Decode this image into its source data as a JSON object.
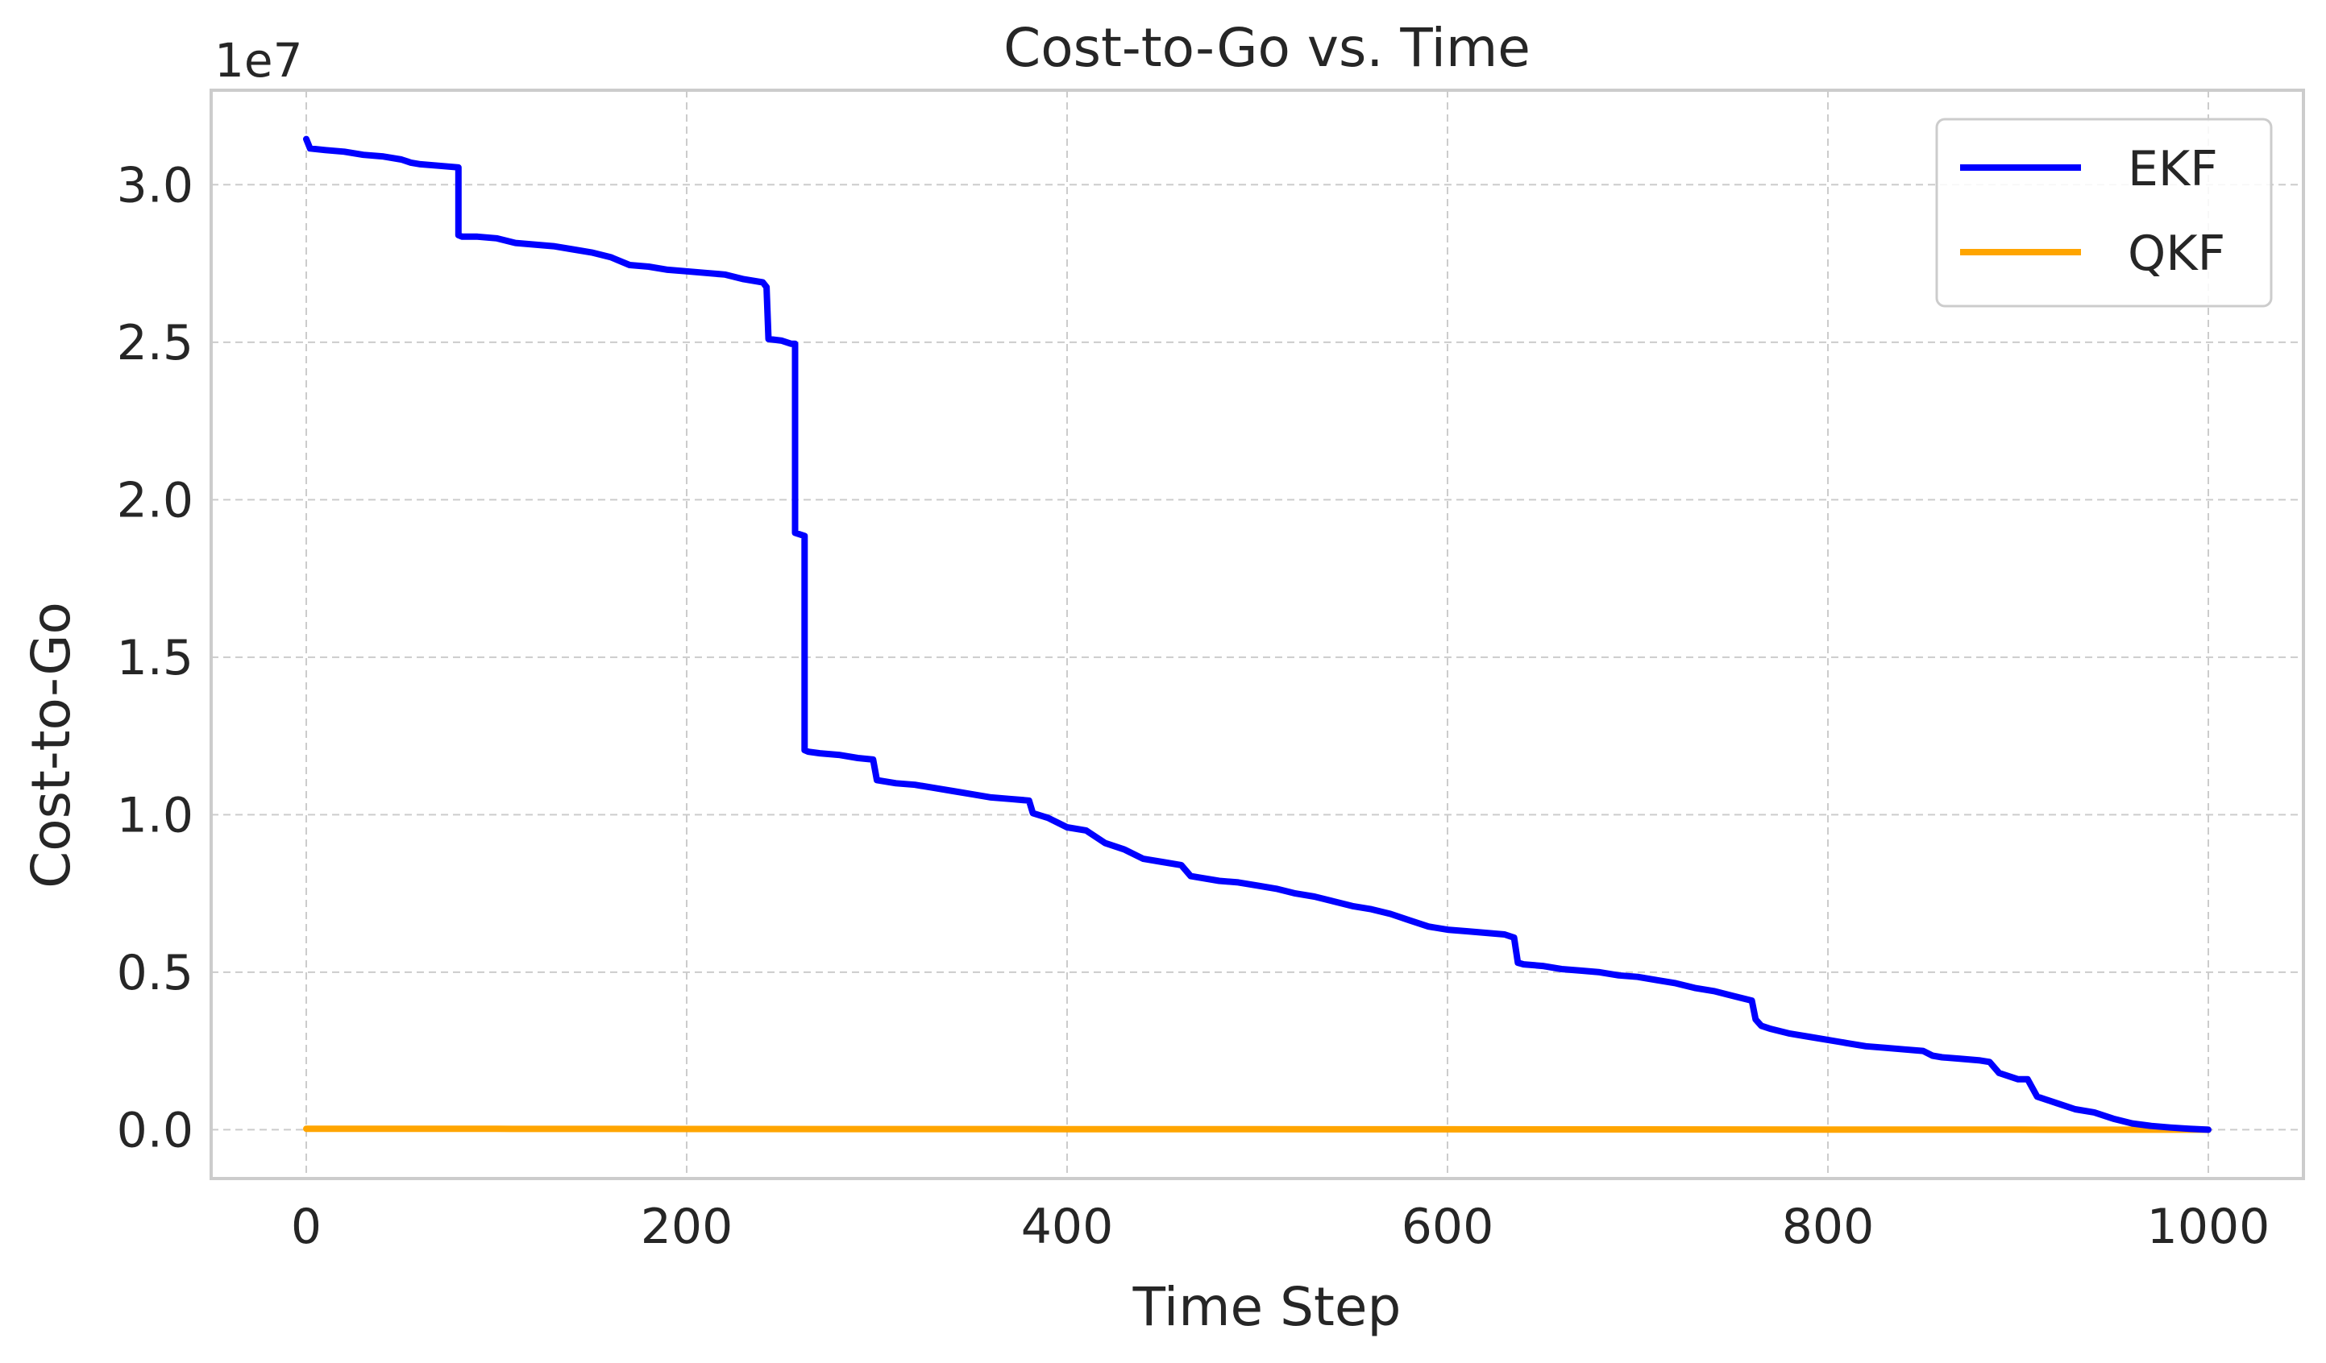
{
  "chart_data": {
    "type": "line",
    "title": "Cost-to-Go vs. Time",
    "xlabel": "Time Step",
    "ylabel": "Cost-to-Go",
    "y_scale_label": "1e7",
    "xlim": [
      -50,
      1050
    ],
    "ylim": [
      -1550000,
      33000000
    ],
    "x_ticks": [
      0,
      200,
      400,
      600,
      800,
      1000
    ],
    "x_tick_labels": [
      "0",
      "200",
      "400",
      "600",
      "800",
      "1000"
    ],
    "y_ticks": [
      0,
      5000000,
      10000000,
      15000000,
      20000000,
      25000000,
      30000000
    ],
    "y_tick_labels": [
      "0.0",
      "0.5",
      "1.0",
      "1.5",
      "2.0",
      "2.5",
      "3.0"
    ],
    "grid": true,
    "legend_position": "top-right",
    "series": [
      {
        "name": "EKF",
        "color": "#0000ff",
        "x": [
          0,
          2,
          10,
          20,
          30,
          40,
          50,
          55,
          60,
          70,
          80,
          80,
          82,
          90,
          100,
          110,
          120,
          130,
          140,
          150,
          160,
          170,
          180,
          190,
          200,
          210,
          220,
          230,
          240,
          242,
          243,
          250,
          255,
          257,
          257,
          262,
          262,
          264,
          270,
          280,
          290,
          298,
          300,
          310,
          320,
          330,
          340,
          350,
          360,
          370,
          380,
          382,
          390,
          400,
          410,
          420,
          430,
          440,
          450,
          460,
          465,
          470,
          480,
          490,
          500,
          510,
          520,
          530,
          540,
          550,
          560,
          570,
          580,
          590,
          600,
          610,
          620,
          630,
          635,
          637,
          640,
          650,
          660,
          670,
          680,
          690,
          700,
          710,
          720,
          730,
          740,
          750,
          760,
          762,
          765,
          770,
          780,
          790,
          800,
          810,
          820,
          830,
          840,
          850,
          855,
          860,
          870,
          880,
          885,
          890,
          900,
          905,
          910,
          920,
          930,
          940,
          950,
          960,
          970,
          980,
          990,
          1000
        ],
        "y": [
          31450000,
          31150000,
          31100000,
          31050000,
          30950000,
          30900000,
          30800000,
          30700000,
          30650000,
          30600000,
          30550000,
          28400000,
          28350000,
          28350000,
          28300000,
          28150000,
          28100000,
          28050000,
          27950000,
          27850000,
          27700000,
          27450000,
          27400000,
          27300000,
          27250000,
          27200000,
          27150000,
          27000000,
          26900000,
          26750000,
          25100000,
          25050000,
          24950000,
          24950000,
          18950000,
          18850000,
          12050000,
          12000000,
          11950000,
          11900000,
          11800000,
          11750000,
          11100000,
          11000000,
          10950000,
          10850000,
          10750000,
          10650000,
          10550000,
          10500000,
          10450000,
          10050000,
          9900000,
          9600000,
          9500000,
          9100000,
          8900000,
          8600000,
          8500000,
          8400000,
          8050000,
          8000000,
          7900000,
          7850000,
          7750000,
          7650000,
          7500000,
          7400000,
          7250000,
          7100000,
          7000000,
          6850000,
          6650000,
          6450000,
          6350000,
          6300000,
          6250000,
          6200000,
          6100000,
          5300000,
          5250000,
          5200000,
          5100000,
          5050000,
          5000000,
          4900000,
          4850000,
          4750000,
          4650000,
          4500000,
          4400000,
          4250000,
          4100000,
          3500000,
          3300000,
          3200000,
          3050000,
          2950000,
          2850000,
          2750000,
          2650000,
          2600000,
          2550000,
          2500000,
          2350000,
          2300000,
          2250000,
          2200000,
          2150000,
          1800000,
          1600000,
          1600000,
          1050000,
          850000,
          650000,
          550000,
          350000,
          200000,
          120000,
          70000,
          30000,
          0
        ]
      },
      {
        "name": "QKF",
        "color": "#ffa500",
        "x": [
          0,
          100,
          200,
          300,
          400,
          500,
          600,
          700,
          800,
          900,
          1000
        ],
        "y": [
          30000,
          27000,
          24000,
          21000,
          18000,
          15000,
          12000,
          9000,
          6000,
          3000,
          0
        ]
      }
    ]
  }
}
